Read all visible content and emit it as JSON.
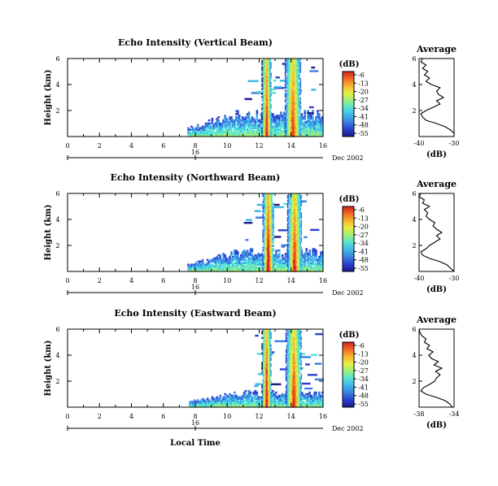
{
  "figure": {
    "xlabel": "Local Time",
    "date_day": "16",
    "date_label": "Dec 2002",
    "colorbar_unit": "(dB)",
    "colorbar_ticks": [
      "-6",
      "-13",
      "-20",
      "-27",
      "-34",
      "-41",
      "-48",
      "-55"
    ],
    "colormap": [
      "#1a1a8c",
      "#2c3fd1",
      "#3a7fe0",
      "#3fb7ea",
      "#55e3d6",
      "#9bef7a",
      "#e6ee45",
      "#f7b530",
      "#f06a24",
      "#cf1f1f"
    ],
    "average_title": "Average",
    "average_xlabel": "(dB)"
  },
  "chart_data": [
    {
      "type": "heatmap",
      "title": "Echo Intensity (Vertical Beam)",
      "ylabel": "Height (km)",
      "x_ticks": [
        "0",
        "2",
        "4",
        "6",
        "8",
        "10",
        "12",
        "14",
        "16"
      ],
      "y_ticks": [
        "2",
        "4",
        "6"
      ],
      "xlim": [
        0,
        16
      ],
      "ylim": [
        0,
        6
      ],
      "echo_start_hour": 7.5,
      "clutter_top_km": 1.6,
      "rain_bands": [
        {
          "center_hour": 12.45,
          "width_hour": 0.3,
          "top_km": 6.0,
          "peak_db": -8
        },
        {
          "center_hour": 14.1,
          "width_hour": 0.5,
          "top_km": 6.0,
          "peak_db": -10
        }
      ],
      "profile": {
        "xlim": [
          -40,
          -30
        ],
        "x_ticks": [
          "-40",
          "-30"
        ],
        "y_ticks": [
          "2",
          "4",
          "6"
        ],
        "height_km": [
          0.0,
          0.25,
          0.5,
          0.75,
          1.0,
          1.25,
          1.5,
          1.75,
          2.0,
          2.25,
          2.5,
          2.75,
          3.0,
          3.25,
          3.5,
          3.75,
          4.0,
          4.25,
          4.5,
          4.75,
          5.0,
          5.25,
          5.5,
          5.75,
          6.0
        ],
        "mean_db": [
          -30,
          -30,
          -31,
          -32.5,
          -35,
          -38,
          -39,
          -39.5,
          -38,
          -36,
          -34,
          -35,
          -33,
          -34.5,
          -35,
          -34,
          -36.5,
          -38,
          -37,
          -38.5,
          -37.5,
          -39,
          -38,
          -39.5,
          -39
        ]
      }
    },
    {
      "type": "heatmap",
      "title": "Echo Intensity (Northward Beam)",
      "ylabel": "Height (km)",
      "x_ticks": [
        "0",
        "2",
        "4",
        "6",
        "8",
        "10",
        "12",
        "14",
        "16"
      ],
      "y_ticks": [
        "2",
        "4",
        "6"
      ],
      "xlim": [
        0,
        16
      ],
      "ylim": [
        0,
        6
      ],
      "echo_start_hour": 7.5,
      "clutter_top_km": 1.4,
      "rain_bands": [
        {
          "center_hour": 12.55,
          "width_hour": 0.35,
          "top_km": 6.0,
          "peak_db": -6
        },
        {
          "center_hour": 14.2,
          "width_hour": 0.45,
          "top_km": 6.0,
          "peak_db": -9
        }
      ],
      "profile": {
        "xlim": [
          -40,
          -30
        ],
        "x_ticks": [
          "-40",
          "-30"
        ],
        "y_ticks": [
          "2",
          "4",
          "6"
        ],
        "height_km": [
          0.0,
          0.25,
          0.5,
          0.75,
          1.0,
          1.25,
          1.5,
          1.75,
          2.0,
          2.25,
          2.5,
          2.75,
          3.0,
          3.25,
          3.5,
          3.75,
          4.0,
          4.25,
          4.5,
          4.75,
          5.0,
          5.25,
          5.5,
          5.75,
          6.0
        ],
        "mean_db": [
          -30,
          -31,
          -32,
          -34,
          -37,
          -39,
          -39.5,
          -38,
          -37,
          -35.5,
          -34,
          -35,
          -33.5,
          -35,
          -36,
          -35.5,
          -37,
          -38,
          -37.5,
          -38.5,
          -37,
          -39,
          -38.5,
          -40,
          -39.5
        ]
      }
    },
    {
      "type": "heatmap",
      "title": "Echo Intensity (Eastward Beam)",
      "ylabel": "Height (km)",
      "x_ticks": [
        "0",
        "2",
        "4",
        "6",
        "8",
        "10",
        "12",
        "14",
        "16"
      ],
      "y_ticks": [
        "2",
        "4",
        "6"
      ],
      "xlim": [
        0,
        16
      ],
      "ylim": [
        0,
        6
      ],
      "echo_start_hour": 7.6,
      "clutter_top_km": 1.0,
      "rain_bands": [
        {
          "center_hour": 12.45,
          "width_hour": 0.3,
          "top_km": 6.0,
          "peak_db": -7
        },
        {
          "center_hour": 14.15,
          "width_hour": 0.5,
          "top_km": 6.0,
          "peak_db": -10
        }
      ],
      "profile": {
        "xlim": [
          -38,
          -34
        ],
        "x_ticks": [
          "-38",
          "-34"
        ],
        "y_ticks": [
          "2",
          "4",
          "6"
        ],
        "height_km": [
          0.0,
          0.25,
          0.5,
          0.75,
          1.0,
          1.25,
          1.5,
          1.75,
          2.0,
          2.25,
          2.5,
          2.75,
          3.0,
          3.25,
          3.5,
          3.75,
          4.0,
          4.25,
          4.5,
          4.75,
          5.0,
          5.25,
          5.5,
          5.75,
          6.0
        ],
        "mean_db": [
          -34.2,
          -34.5,
          -35,
          -36,
          -37.2,
          -37.8,
          -37.5,
          -36.8,
          -36.2,
          -36,
          -35.6,
          -36.1,
          -35.4,
          -36.3,
          -35.8,
          -36.6,
          -36.9,
          -36.4,
          -37.1,
          -36.8,
          -37.4,
          -37.2,
          -37.7,
          -37.9,
          -38
        ]
      }
    }
  ]
}
